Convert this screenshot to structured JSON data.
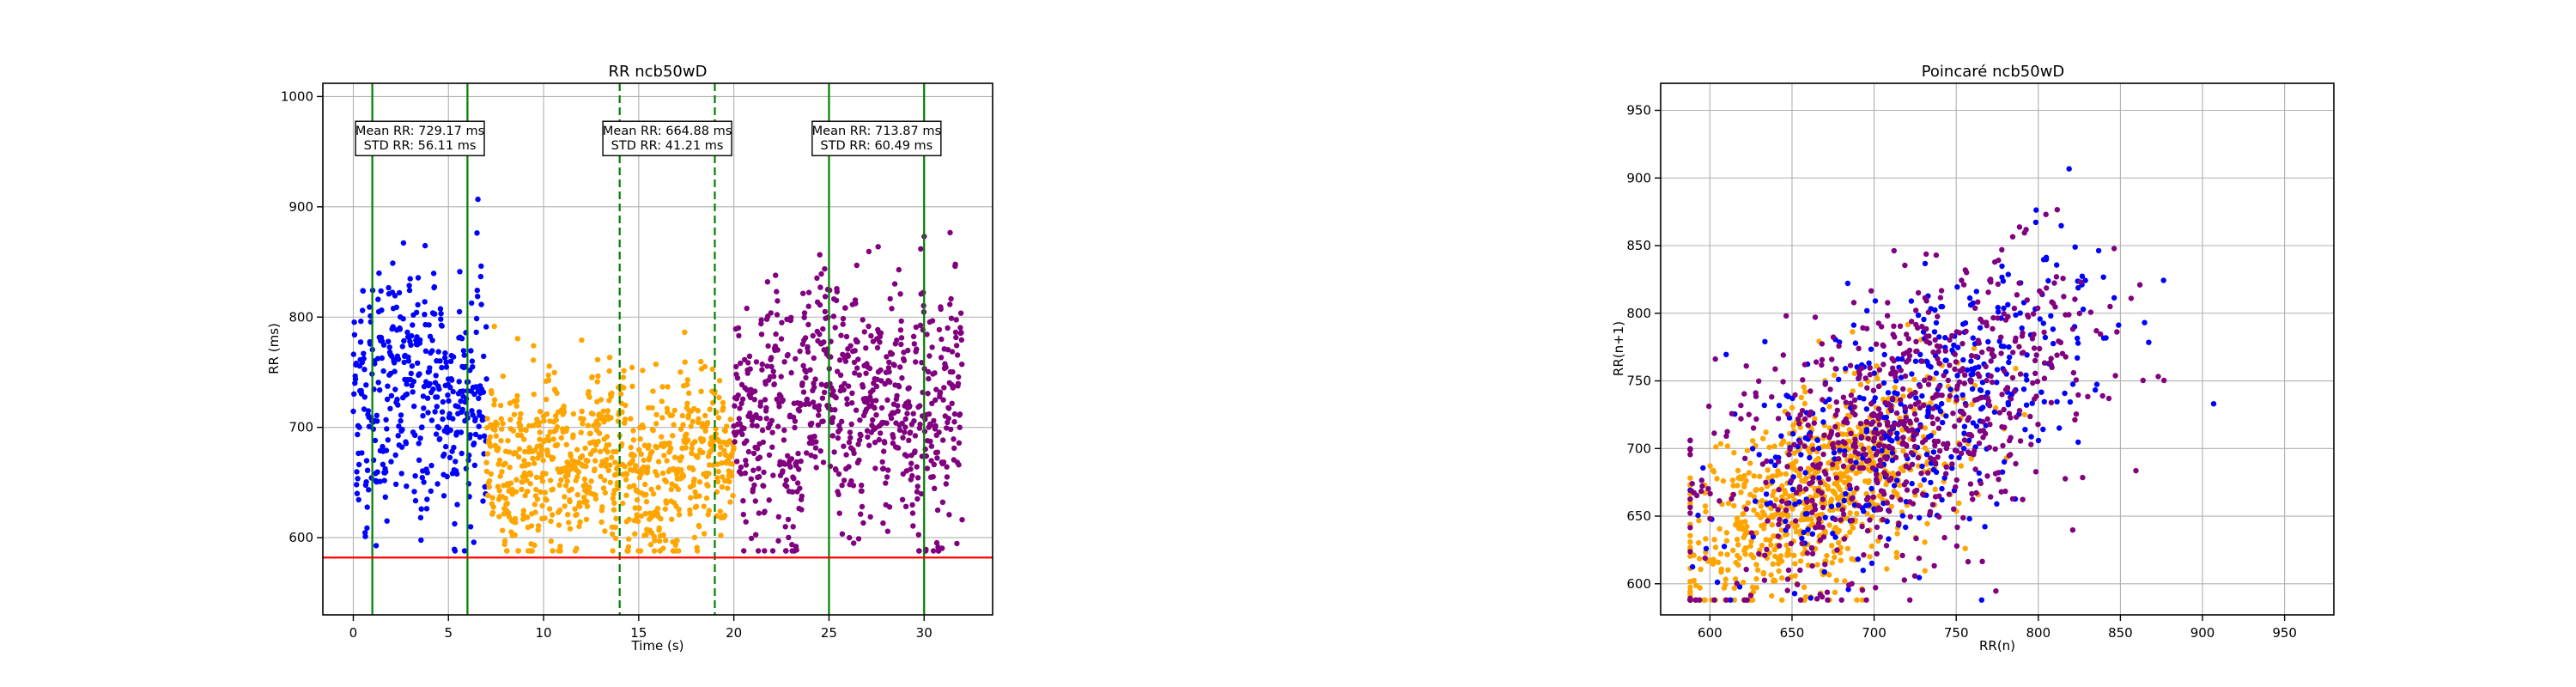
{
  "chart_data": [
    {
      "type": "scatter",
      "title": "RR ncb50wD",
      "xlabel": "Time (s)",
      "ylabel": "RR (ms)",
      "xlim": [
        -1.6,
        33.6
      ],
      "ylim": [
        530,
        1012
      ],
      "xticks": [
        0,
        5,
        10,
        15,
        20,
        25,
        30
      ],
      "yticks": [
        600,
        700,
        800,
        900,
        1000
      ],
      "grid": true,
      "threshold_line": {
        "y": 582,
        "color": "#ff0000"
      },
      "vertical_lines": [
        {
          "x": 1,
          "style": "solid",
          "color": "#008000"
        },
        {
          "x": 6,
          "style": "solid",
          "color": "#008000"
        },
        {
          "x": 14,
          "style": "dashed",
          "color": "#008000"
        },
        {
          "x": 19,
          "style": "dashed",
          "color": "#008000"
        },
        {
          "x": 25,
          "style": "solid",
          "color": "#008000"
        },
        {
          "x": 30,
          "style": "solid",
          "color": "#008000"
        }
      ],
      "annotations": [
        {
          "x": 3.5,
          "y": 962,
          "lines": [
            "Mean RR: 729.17 ms",
            "STD RR: 56.11 ms"
          ]
        },
        {
          "x": 16.5,
          "y": 962,
          "lines": [
            "Mean RR: 664.88 ms",
            "STD RR: 41.21 ms"
          ]
        },
        {
          "x": 27.5,
          "y": 962,
          "lines": [
            "Mean RR: 713.87 ms",
            "STD RR: 60.49 ms"
          ]
        }
      ],
      "series": [
        {
          "color": "#0000ff",
          "x_range": [
            0,
            7
          ],
          "mean": 729.17,
          "std": 56.11,
          "count": 420
        },
        {
          "color": "#ffa500",
          "x_range": [
            7,
            20
          ],
          "mean": 664.88,
          "std": 41.21,
          "count": 820
        },
        {
          "color": "#800080",
          "x_range": [
            20,
            32
          ],
          "mean": 713.87,
          "std": 60.49,
          "count": 740
        }
      ]
    },
    {
      "type": "scatter",
      "title": "Poincaré ncb50wD",
      "xlabel": "RR(n)",
      "ylabel": "RR(n+1)",
      "xlim": [
        570,
        980
      ],
      "ylim": [
        577,
        970
      ],
      "xticks": [
        600,
        650,
        700,
        750,
        800,
        850,
        900,
        950
      ],
      "yticks": [
        600,
        650,
        700,
        750,
        800,
        850,
        900,
        950
      ],
      "grid": true,
      "series": [
        {
          "color": "#0000ff",
          "mean": 729.17,
          "std": 56.11,
          "count": 420
        },
        {
          "color": "#ffa500",
          "mean": 664.88,
          "std": 41.21,
          "count": 820
        },
        {
          "color": "#800080",
          "mean": 713.87,
          "std": 60.49,
          "count": 740
        }
      ]
    }
  ]
}
